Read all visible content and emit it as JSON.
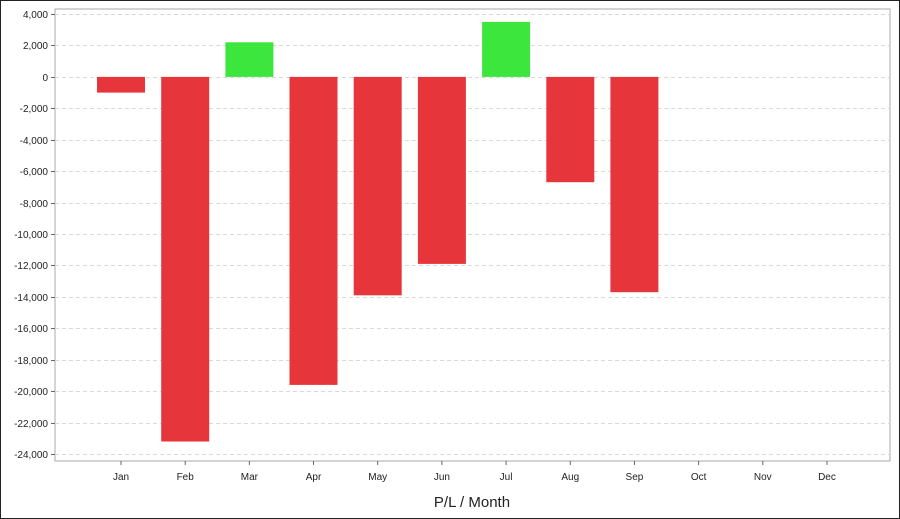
{
  "colors": {
    "profit": "#3de63d",
    "loss": "#e6363c",
    "grid": "#d9d9d9",
    "axis": "#666666"
  },
  "chart_data": {
    "type": "bar",
    "xlabel": "P/L / Month",
    "ylabel": "",
    "categories": [
      "Jan",
      "Feb",
      "Mar",
      "Apr",
      "May",
      "Jun",
      "Jul",
      "Aug",
      "Sep",
      "Oct",
      "Nov",
      "Dec"
    ],
    "values": [
      -1000,
      -23200,
      2200,
      -19600,
      -13900,
      -11900,
      3500,
      -6700,
      -13700,
      null,
      null,
      null
    ],
    "ylim": [
      -24000,
      4000
    ],
    "yticks": [
      4000,
      2000,
      0,
      -2000,
      -4000,
      -6000,
      -8000,
      -10000,
      -12000,
      -14000,
      -16000,
      -18000,
      -20000,
      -22000,
      -24000
    ],
    "ytick_labels": [
      "4,000",
      "2,000",
      "0",
      "-2,000",
      "-4,000",
      "-6,000",
      "-8,000",
      "-10,000",
      "-12,000",
      "-14,000",
      "-16,000",
      "-18,000",
      "-20,000",
      "-22,000",
      "-24,000"
    ],
    "grid": true,
    "grid_style": "dashed",
    "legend": "none"
  }
}
